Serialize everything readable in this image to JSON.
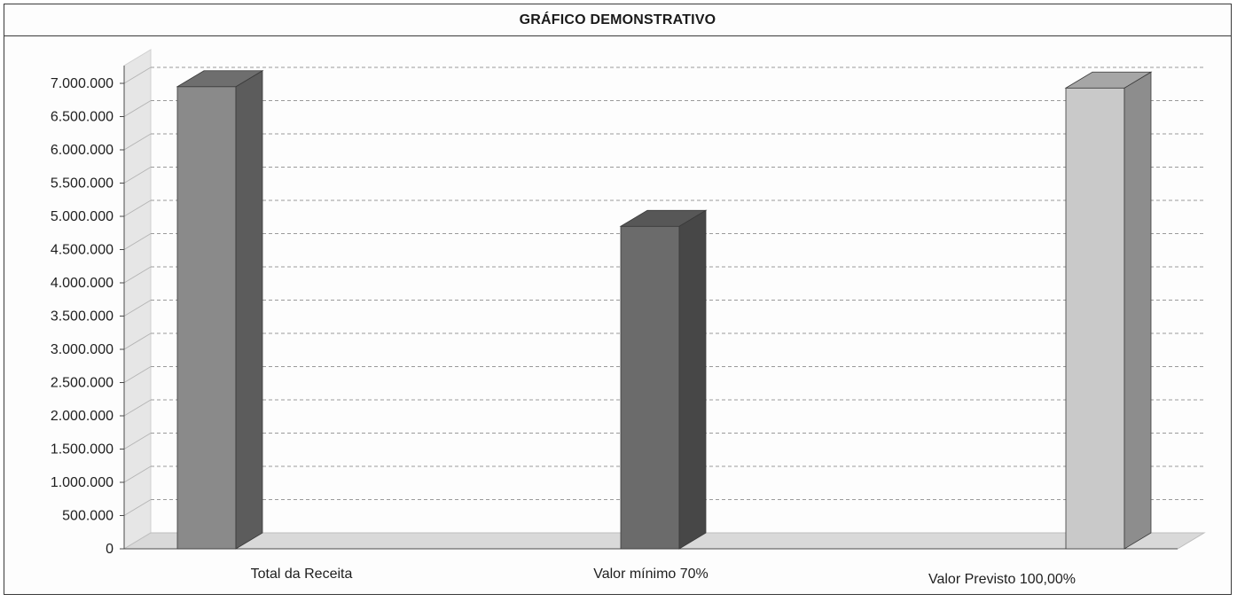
{
  "chart_data": {
    "type": "bar",
    "title": "GRÁFICO DEMONSTRATIVO",
    "categories": [
      "Total da Receita",
      "Valor mínimo 70%",
      "Valor Previsto 100,00%"
    ],
    "values": [
      6950000,
      4850000,
      6930000
    ],
    "ylim": [
      0,
      7000000
    ],
    "yticks": [
      0,
      500000,
      1000000,
      1500000,
      2000000,
      2500000,
      3000000,
      3500000,
      4000000,
      4500000,
      5000000,
      5500000,
      6000000,
      6500000,
      7000000
    ],
    "ytick_labels": [
      "0",
      "500.000",
      "1.000.000",
      "1.500.000",
      "2.000.000",
      "2.500.000",
      "3.000.000",
      "3.500.000",
      "4.000.000",
      "4.500.000",
      "5.000.000",
      "5.500.000",
      "6.000.000",
      "6.500.000",
      "7.000.000"
    ],
    "grid": true,
    "bar_colors": [
      {
        "front": "#8a8a8a",
        "side": "#5c5c5c",
        "top": "#6e6e6e"
      },
      {
        "front": "#6b6b6b",
        "side": "#474747",
        "top": "#575757"
      },
      {
        "front": "#c9c9c9",
        "side": "#8d8d8d",
        "top": "#a6a6a6"
      }
    ]
  }
}
